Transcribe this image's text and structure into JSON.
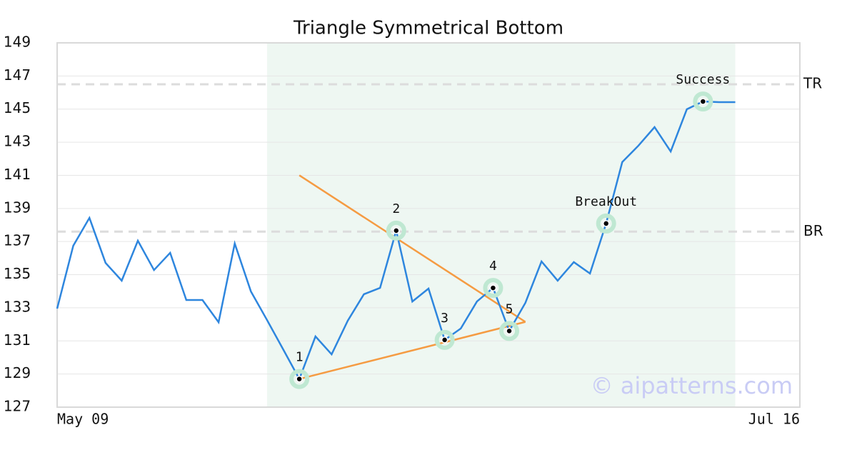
{
  "chart_data": {
    "type": "line",
    "title": "Triangle Symmetrical Bottom",
    "categories": [
      "May 09",
      null,
      null,
      null,
      null,
      null,
      null,
      null,
      null,
      null,
      null,
      null,
      null,
      null,
      null,
      null,
      null,
      null,
      null,
      null,
      null,
      null,
      null,
      null,
      null,
      null,
      null,
      null,
      null,
      null,
      null,
      null,
      null,
      null,
      null,
      null,
      null,
      null,
      null,
      null,
      null,
      null,
      null,
      null,
      null,
      null,
      "Jul 16"
    ],
    "values": [
      132.95,
      136.75,
      138.43,
      135.71,
      134.64,
      137.05,
      135.28,
      136.32,
      133.47,
      133.47,
      132.13,
      136.88,
      133.99,
      132.26,
      130.49,
      128.7,
      131.27,
      130.19,
      132.22,
      133.82,
      134.2,
      137.66,
      133.38,
      134.16,
      131.06,
      131.75,
      133.38,
      134.2,
      131.6,
      133.3,
      135.8,
      134.64,
      135.76,
      135.07,
      138.09,
      141.8,
      142.79,
      143.91,
      142.44,
      144.99,
      145.46,
      145.42,
      145.42,
      null,
      null,
      null,
      null
    ],
    "color": "#2e86de",
    "ylim": [
      127,
      149
    ],
    "yticks": [
      127,
      129,
      131,
      133,
      135,
      137,
      139,
      141,
      143,
      145,
      147,
      149
    ],
    "grid": true,
    "highlight_range": [
      13,
      42
    ],
    "highlight_color": "#eef7f2",
    "annotations": [
      {
        "text": "1",
        "index": 15
      },
      {
        "text": "2",
        "index": 21
      },
      {
        "text": "3",
        "index": 24
      },
      {
        "text": "4",
        "index": 27
      },
      {
        "text": "5",
        "index": 28
      },
      {
        "text": "BreakOut",
        "index": 34
      },
      {
        "text": "Success",
        "index": 40
      }
    ],
    "trendlines": [
      {
        "color": "#f59b42",
        "start": {
          "index": 15,
          "value": 141.0
        },
        "end": {
          "index": 29,
          "value": 132.15
        }
      },
      {
        "color": "#f59b42",
        "start": {
          "index": 15,
          "value": 128.7
        },
        "end": {
          "index": 29,
          "value": 132.15
        }
      }
    ],
    "levels": [
      {
        "label": "TR",
        "value": 146.5
      },
      {
        "label": "BR",
        "value": 137.6
      }
    ],
    "watermark": "© aipatterns.com"
  }
}
